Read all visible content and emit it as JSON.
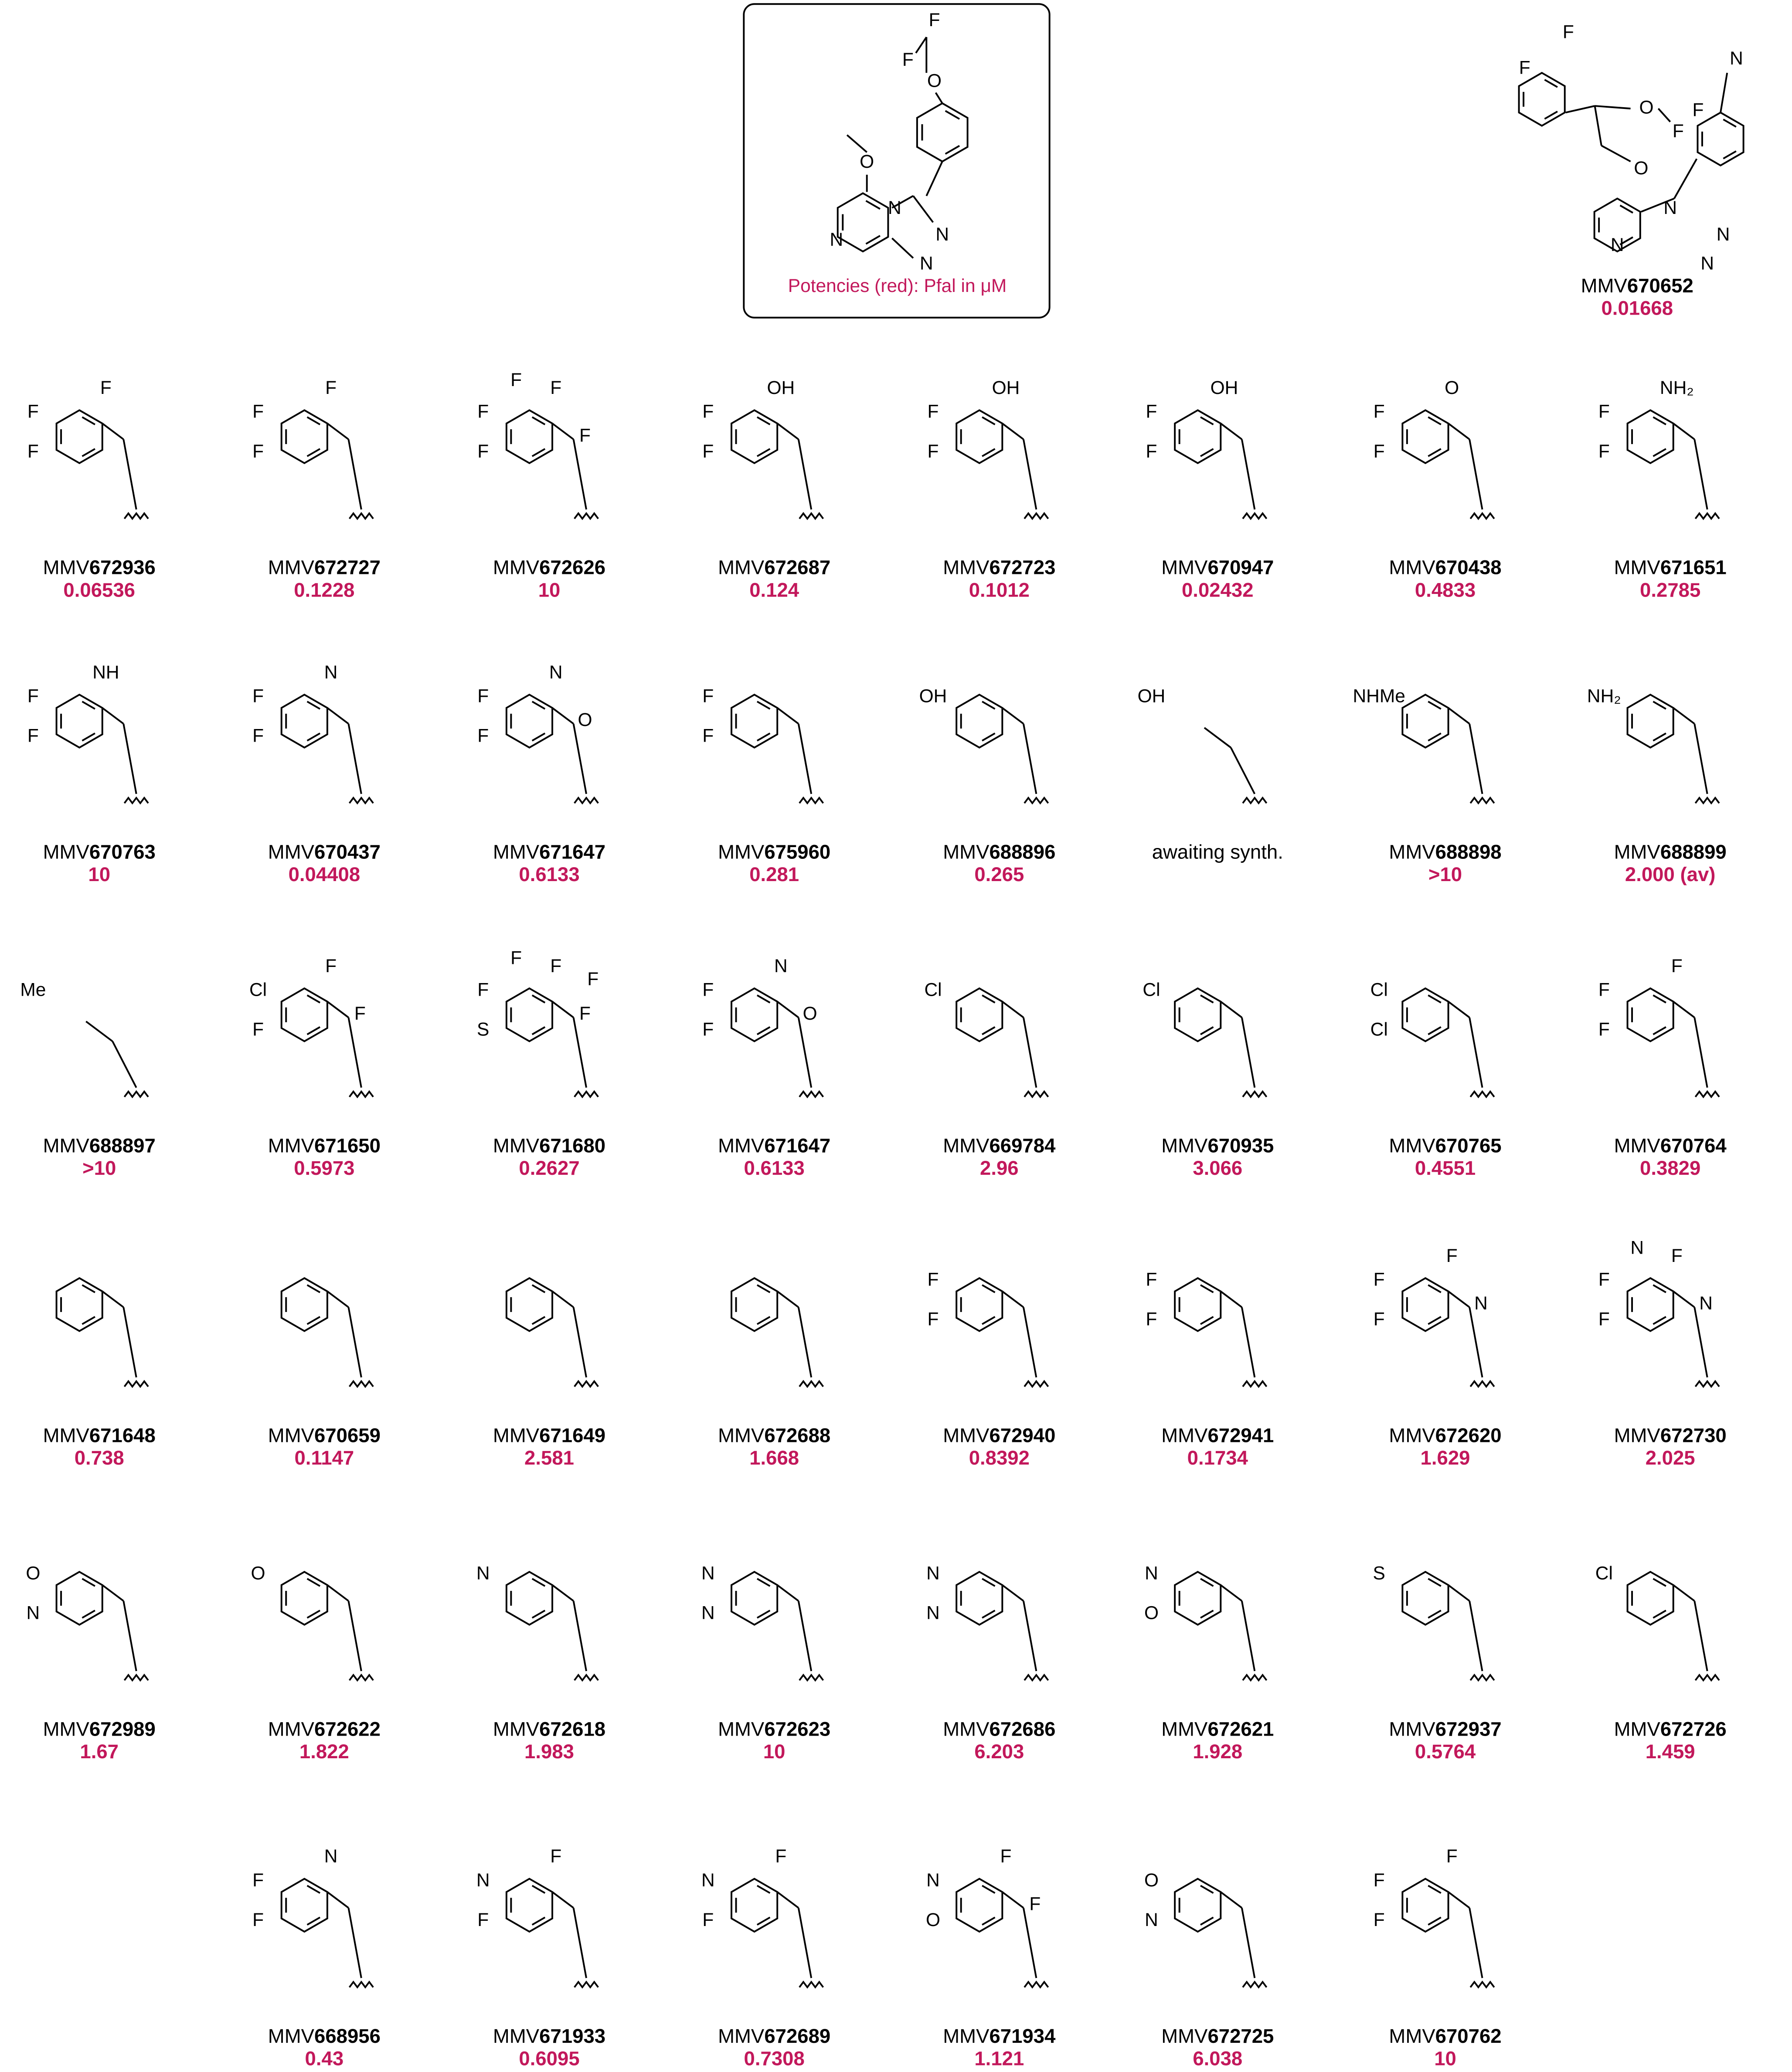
{
  "header": {
    "core": {
      "atoms": [
        "F",
        "F",
        "O",
        "O",
        "N",
        "N",
        "N",
        "N"
      ]
    },
    "legend": "Potencies (red): Pfal in μM"
  },
  "reference": {
    "prefix": "MMV",
    "number": "670652",
    "potency": "0.01668",
    "atoms": [
      "F",
      "F",
      "O",
      "F",
      "F",
      "N",
      "O",
      "N",
      "N",
      "N",
      "N"
    ]
  },
  "rows": [
    [
      {
        "prefix": "MMV",
        "number": "672936",
        "potency": "0.06536",
        "atoms": [
          "F",
          "F",
          "F"
        ]
      },
      {
        "prefix": "MMV",
        "number": "672727",
        "potency": "0.1228",
        "atoms": [
          "F",
          "F",
          "F"
        ]
      },
      {
        "prefix": "MMV",
        "number": "672626",
        "potency": "10",
        "atoms": [
          "F",
          "F",
          "F",
          "F",
          "F"
        ]
      },
      {
        "prefix": "MMV",
        "number": "672687",
        "potency": "0.124",
        "atoms": [
          "F",
          "F",
          "OH"
        ]
      },
      {
        "prefix": "MMV",
        "number": "672723",
        "potency": "0.1012",
        "atoms": [
          "F",
          "F",
          "OH"
        ]
      },
      {
        "prefix": "MMV",
        "number": "670947",
        "potency": "0.02432",
        "atoms": [
          "F",
          "F",
          "OH"
        ]
      },
      {
        "prefix": "MMV",
        "number": "670438",
        "potency": "0.4833",
        "atoms": [
          "F",
          "F",
          "O"
        ]
      },
      {
        "prefix": "MMV",
        "number": "671651",
        "potency": "0.2785",
        "atoms": [
          "F",
          "F",
          "NH₂"
        ]
      }
    ],
    [
      {
        "prefix": "MMV",
        "number": "670763",
        "potency": "10",
        "atoms": [
          "F",
          "F",
          "NH"
        ]
      },
      {
        "prefix": "MMV",
        "number": "670437",
        "potency": "0.04408",
        "atoms": [
          "F",
          "F",
          "N"
        ]
      },
      {
        "prefix": "MMV",
        "number": "671647",
        "potency": "0.6133",
        "atoms": [
          "F",
          "F",
          "N",
          "O"
        ]
      },
      {
        "prefix": "MMV",
        "number": "675960",
        "potency": "0.281",
        "atoms": [
          "F",
          "F"
        ]
      },
      {
        "prefix": "MMV",
        "number": "688896",
        "potency": "0.265",
        "atoms": [
          "OH"
        ]
      },
      {
        "label": "awaiting synth.",
        "atoms": [
          "OH"
        ]
      },
      {
        "prefix": "MMV",
        "number": "688898",
        "potency": ">10",
        "atoms": [
          "NHMe"
        ]
      },
      {
        "prefix": "MMV",
        "number": "688899",
        "potency": "2.000 (av)",
        "atoms": [
          "NH₂"
        ]
      }
    ],
    [
      {
        "prefix": "MMV",
        "number": "688897",
        "potency": ">10",
        "atoms": [
          "Me"
        ]
      },
      {
        "prefix": "MMV",
        "number": "671650",
        "potency": "0.5973",
        "atoms": [
          "Cl",
          "F",
          "F",
          "F"
        ]
      },
      {
        "prefix": "MMV",
        "number": "671680",
        "potency": "0.2627",
        "atoms": [
          "F",
          "S",
          "F",
          "F",
          "F",
          "F"
        ]
      },
      {
        "prefix": "MMV",
        "number": "671647",
        "potency": "0.6133",
        "atoms": [
          "F",
          "F",
          "N",
          "O"
        ]
      },
      {
        "prefix": "MMV",
        "number": "669784",
        "potency": "2.96",
        "atoms": [
          "Cl"
        ]
      },
      {
        "prefix": "MMV",
        "number": "670935",
        "potency": "3.066",
        "atoms": [
          "Cl"
        ]
      },
      {
        "prefix": "MMV",
        "number": "670765",
        "potency": "0.4551",
        "atoms": [
          "Cl",
          "Cl"
        ]
      },
      {
        "prefix": "MMV",
        "number": "670764",
        "potency": "0.3829",
        "atoms": [
          "F",
          "F",
          "F"
        ]
      }
    ],
    [
      {
        "prefix": "MMV",
        "number": "671648",
        "potency": "0.738",
        "atoms": []
      },
      {
        "prefix": "MMV",
        "number": "670659",
        "potency": "0.1147",
        "atoms": []
      },
      {
        "prefix": "MMV",
        "number": "671649",
        "potency": "2.581",
        "atoms": []
      },
      {
        "prefix": "MMV",
        "number": "672688",
        "potency": "1.668",
        "atoms": []
      },
      {
        "prefix": "MMV",
        "number": "672940",
        "potency": "0.8392",
        "atoms": [
          "F",
          "F"
        ]
      },
      {
        "prefix": "MMV",
        "number": "672941",
        "potency": "0.1734",
        "atoms": [
          "F",
          "F"
        ]
      },
      {
        "prefix": "MMV",
        "number": "672620",
        "potency": "1.629",
        "atoms": [
          "F",
          "F",
          "F",
          "N"
        ]
      },
      {
        "prefix": "MMV",
        "number": "672730",
        "potency": "2.025",
        "atoms": [
          "F",
          "F",
          "F",
          "N",
          "N"
        ]
      }
    ],
    [
      {
        "prefix": "MMV",
        "number": "672989",
        "potency": "1.67",
        "atoms": [
          "O",
          "N"
        ]
      },
      {
        "prefix": "MMV",
        "number": "672622",
        "potency": "1.822",
        "atoms": [
          "O"
        ]
      },
      {
        "prefix": "MMV",
        "number": "672618",
        "potency": "1.983",
        "atoms": [
          "N"
        ]
      },
      {
        "prefix": "MMV",
        "number": "672623",
        "potency": "10",
        "atoms": [
          "N",
          "N"
        ]
      },
      {
        "prefix": "MMV",
        "number": "672686",
        "potency": "6.203",
        "atoms": [
          "N",
          "N"
        ]
      },
      {
        "prefix": "MMV",
        "number": "672621",
        "potency": "1.928",
        "atoms": [
          "N",
          "O"
        ]
      },
      {
        "prefix": "MMV",
        "number": "672937",
        "potency": "0.5764",
        "atoms": [
          "S"
        ]
      },
      {
        "prefix": "MMV",
        "number": "672726",
        "potency": "1.459",
        "atoms": [
          "Cl"
        ]
      }
    ],
    [
      {
        "prefix": "MMV",
        "number": "668956",
        "potency": "0.43",
        "atoms": [
          "F",
          "F",
          "N"
        ]
      },
      {
        "prefix": "MMV",
        "number": "671933",
        "potency": "0.6095",
        "atoms": [
          "N",
          "F",
          "F"
        ]
      },
      {
        "prefix": "MMV",
        "number": "672689",
        "potency": "0.7308",
        "atoms": [
          "N",
          "F",
          "F"
        ]
      },
      {
        "prefix": "MMV",
        "number": "671934",
        "potency": "1.121",
        "atoms": [
          "N",
          "O",
          "F",
          "F"
        ]
      },
      {
        "prefix": "MMV",
        "number": "672725",
        "potency": "6.038",
        "atoms": [
          "O",
          "N"
        ]
      },
      {
        "prefix": "MMV",
        "number": "670762",
        "potency": "10",
        "atoms": [
          "F",
          "F",
          "F"
        ]
      }
    ]
  ]
}
